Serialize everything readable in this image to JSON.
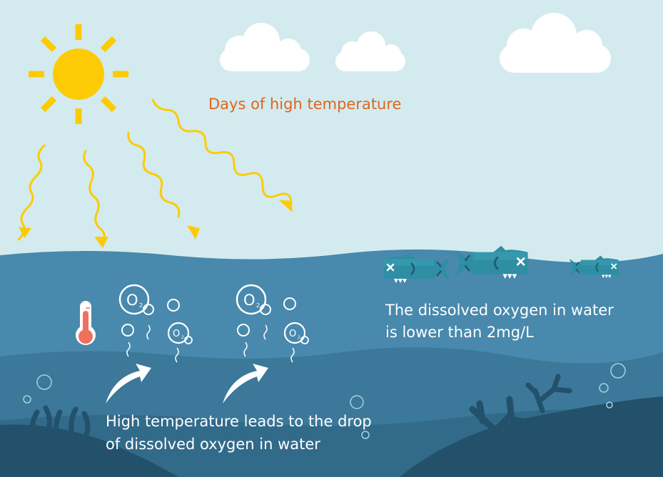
{
  "title": "Days of high temperature",
  "oxygen_caption": {
    "line1": "The dissolved oxygen in water",
    "line2": "is lower than 2mg/L"
  },
  "temperature_caption": {
    "line1": "High temperature leads to the drop",
    "line2": "of dissolved oxygen in water"
  },
  "molecule": {
    "symbol": "O",
    "subscript": "2"
  },
  "colors": {
    "sky": "#d3ebef",
    "sun": "#fccb05",
    "water_surface": "#4889ad",
    "water_mid": "#3b7899",
    "water_deep": "#326a89",
    "seabed": "#23506a",
    "fish": "#2e8ea4",
    "thermometer": "#ee7060",
    "title_text": "#e0651c"
  },
  "icons": [
    "sun-icon",
    "cloud-icon",
    "heat-ray-icon",
    "thermometer-icon",
    "oxygen-bubble-icon",
    "dead-fish-icon",
    "curved-arrow-icon",
    "coral-icon",
    "seaweed-icon"
  ]
}
